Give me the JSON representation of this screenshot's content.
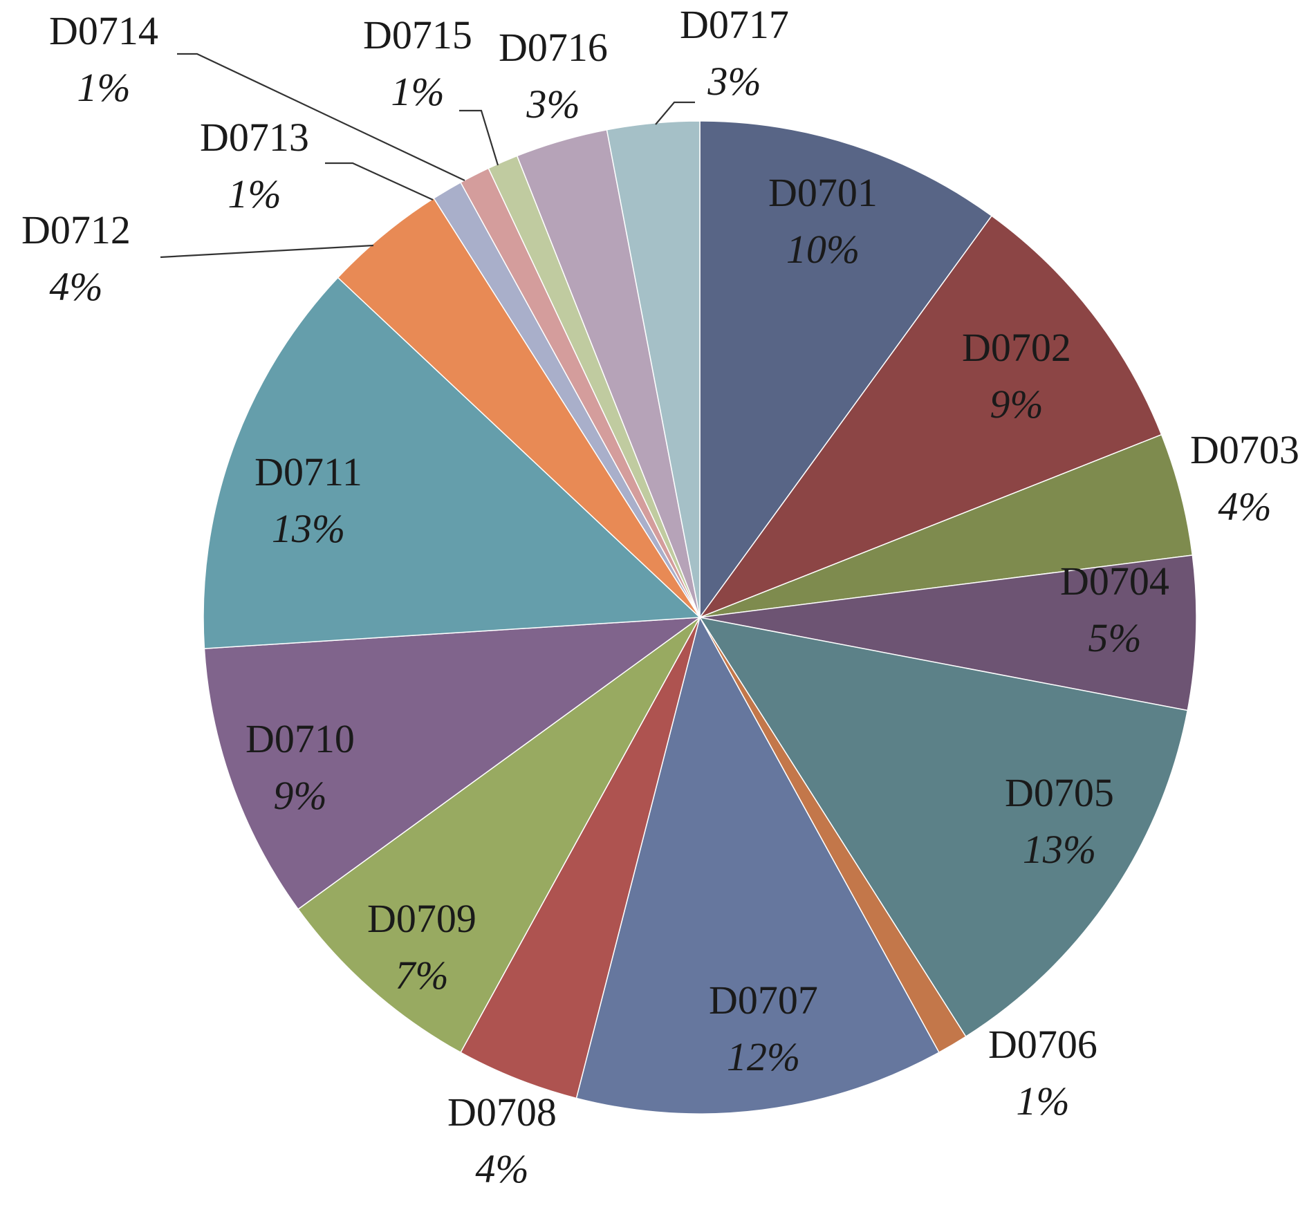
{
  "chart_data": {
    "type": "pie",
    "title": "",
    "start": "top",
    "direction": "clockwise",
    "label_format": "category and percentage",
    "slices": [
      {
        "label": "D0701",
        "value": 10,
        "pct_label": "10%",
        "color": "#586586",
        "label_mode": "inside"
      },
      {
        "label": "D0702",
        "value": 9,
        "pct_label": "9%",
        "color": "#8c4545",
        "label_mode": "inside"
      },
      {
        "label": "D0703",
        "value": 4,
        "pct_label": "4%",
        "color": "#7e8b4e",
        "label_mode": "outside"
      },
      {
        "label": "D0704",
        "value": 5,
        "pct_label": "5%",
        "color": "#6d5473",
        "label_mode": "inside"
      },
      {
        "label": "D0705",
        "value": 13,
        "pct_label": "13%",
        "color": "#5c8188",
        "label_mode": "inside"
      },
      {
        "label": "D0706",
        "value": 1,
        "pct_label": "1%",
        "color": "#c3774a",
        "label_mode": "outside"
      },
      {
        "label": "D0707",
        "value": 12,
        "pct_label": "12%",
        "color": "#66779e",
        "label_mode": "inside"
      },
      {
        "label": "D0708",
        "value": 4,
        "pct_label": "4%",
        "color": "#ae5350",
        "label_mode": "outside"
      },
      {
        "label": "D0709",
        "value": 7,
        "pct_label": "7%",
        "color": "#98aa61",
        "label_mode": "inside"
      },
      {
        "label": "D0710",
        "value": 9,
        "pct_label": "9%",
        "color": "#80648c",
        "label_mode": "inside"
      },
      {
        "label": "D0711",
        "value": 13,
        "pct_label": "13%",
        "color": "#659eab",
        "label_mode": "inside"
      },
      {
        "label": "D0712",
        "value": 4,
        "pct_label": "4%",
        "color": "#e88a55",
        "label_mode": "outside-leader"
      },
      {
        "label": "D0713",
        "value": 1,
        "pct_label": "1%",
        "color": "#a9afca",
        "label_mode": "outside-leader"
      },
      {
        "label": "D0714",
        "value": 1,
        "pct_label": "1%",
        "color": "#d49d9c",
        "label_mode": "outside-leader"
      },
      {
        "label": "D0715",
        "value": 1,
        "pct_label": "1%",
        "color": "#c0cba0",
        "label_mode": "outside-leader"
      },
      {
        "label": "D0716",
        "value": 3,
        "pct_label": "3%",
        "color": "#b6a3b8",
        "label_mode": "outside"
      },
      {
        "label": "D0717",
        "value": 3,
        "pct_label": "3%",
        "color": "#a5c0c7",
        "label_mode": "outside-leader"
      }
    ]
  }
}
